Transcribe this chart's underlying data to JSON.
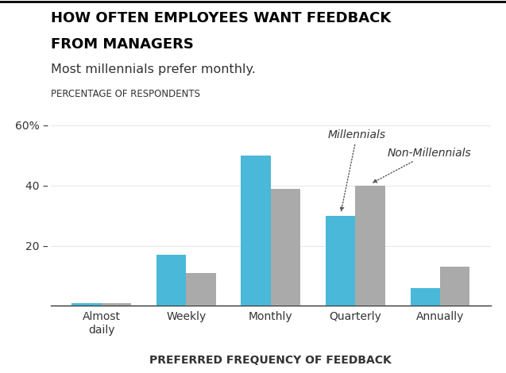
{
  "title_line1": "HOW OFTEN EMPLOYEES WANT FEEDBACK",
  "title_line2": "FROM MANAGERS",
  "subtitle": "Most millennials prefer monthly.",
  "ylabel_upper": "PERCENTAGE OF RESPONDENTS",
  "xlabel": "PREFERRED FREQUENCY OF FEEDBACK",
  "categories": [
    "Almost\ndaily",
    "Weekly",
    "Monthly",
    "Quarterly",
    "Annually"
  ],
  "millennials": [
    1,
    17,
    50,
    30,
    6
  ],
  "non_millennials": [
    1,
    11,
    39,
    40,
    13
  ],
  "color_millennials": "#4ab8d8",
  "color_non_millennials": "#aaaaaa",
  "ylim": [
    0,
    62
  ],
  "yticks": [
    20,
    40,
    60
  ],
  "bar_width": 0.35,
  "annotation_millennials": "Millennials",
  "annotation_non_millennials": "Non-Millennials",
  "bg_color": "#ffffff"
}
